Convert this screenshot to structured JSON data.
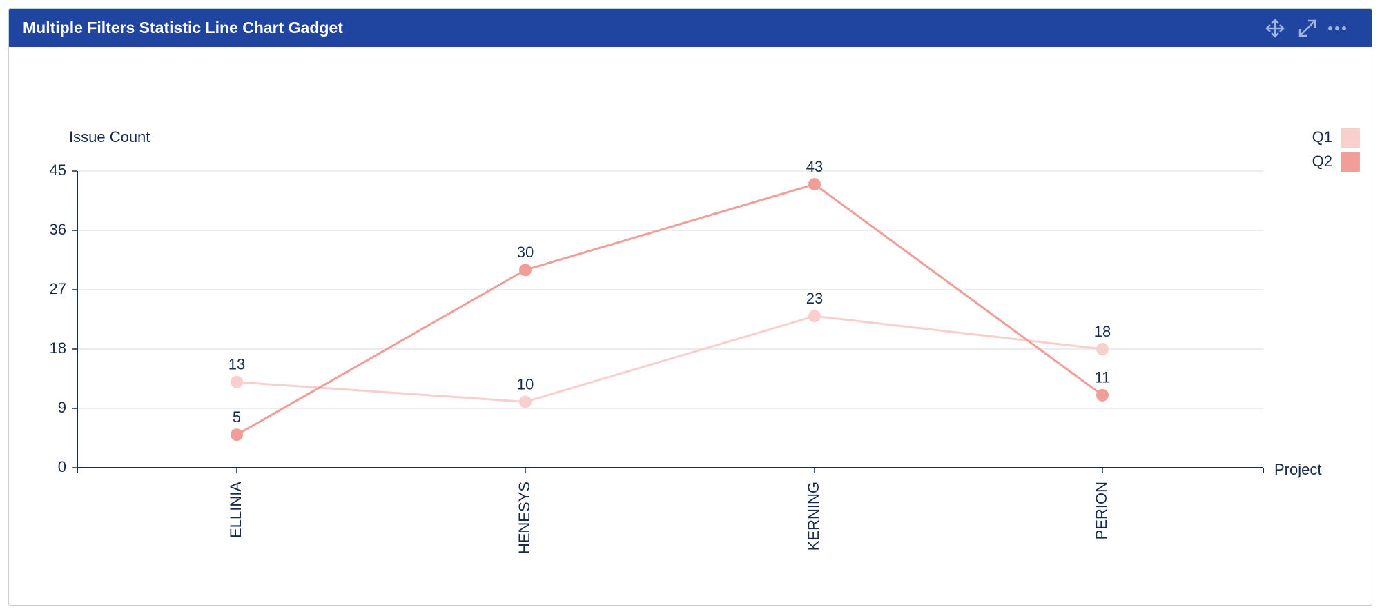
{
  "header": {
    "title": "Multiple Filters Statistic Line Chart Gadget"
  },
  "chart_data": {
    "type": "line",
    "y_label": "Issue Count",
    "x_label": "Project",
    "categories": [
      "ELLINIA",
      "HENESYS",
      "KERNING",
      "PERION"
    ],
    "series": [
      {
        "name": "Q1",
        "color": "#f8cfcc",
        "values": [
          13,
          10,
          23,
          18
        ]
      },
      {
        "name": "Q2",
        "color": "#f19d98",
        "values": [
          5,
          30,
          43,
          11
        ]
      }
    ],
    "ylim": [
      0,
      45
    ],
    "yticks": [
      0,
      9,
      18,
      27,
      36,
      45
    ],
    "grid": true,
    "legend": "top-right"
  }
}
